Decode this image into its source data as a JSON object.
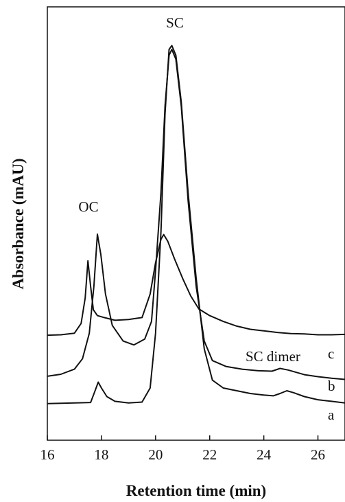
{
  "chart_data": {
    "type": "line",
    "xlabel": "Retention time (min)",
    "ylabel": "Absorbance (mAU)",
    "xlim": [
      16,
      27
    ],
    "ylim": [
      0,
      100
    ],
    "x_ticks": [
      16,
      18,
      20,
      22,
      24,
      26
    ],
    "y_ticks_shown": false,
    "grid": false,
    "legend": "none",
    "annotations": [
      "SC",
      "OC",
      "SC dimer"
    ],
    "series": [
      {
        "name": "a",
        "points": [
          [
            16,
            6
          ],
          [
            17.6,
            6.3
          ],
          [
            17.75,
            9
          ],
          [
            17.88,
            11.5
          ],
          [
            18.0,
            10
          ],
          [
            18.2,
            7.8
          ],
          [
            18.5,
            6.6
          ],
          [
            19,
            6.2
          ],
          [
            19.5,
            6.4
          ],
          [
            19.8,
            10
          ],
          [
            20.0,
            24
          ],
          [
            20.2,
            50
          ],
          [
            20.35,
            80
          ],
          [
            20.5,
            96.5
          ],
          [
            20.6,
            97.5
          ],
          [
            20.75,
            95
          ],
          [
            20.95,
            83
          ],
          [
            21.2,
            60
          ],
          [
            21.5,
            38
          ],
          [
            21.8,
            20
          ],
          [
            22.1,
            12
          ],
          [
            22.5,
            10
          ],
          [
            23.0,
            9.3
          ],
          [
            23.5,
            8.6
          ],
          [
            24.0,
            8.2
          ],
          [
            24.35,
            8.0
          ],
          [
            24.6,
            8.6
          ],
          [
            24.85,
            9.3
          ],
          [
            25.1,
            8.8
          ],
          [
            25.5,
            7.8
          ],
          [
            26.0,
            7.0
          ],
          [
            26.5,
            6.6
          ],
          [
            27,
            6.2
          ]
        ]
      },
      {
        "name": "b",
        "points": [
          [
            16,
            13
          ],
          [
            16.5,
            13.5
          ],
          [
            17.0,
            14.8
          ],
          [
            17.3,
            17.5
          ],
          [
            17.55,
            24
          ],
          [
            17.72,
            36
          ],
          [
            17.85,
            49.3
          ],
          [
            17.98,
            44
          ],
          [
            18.15,
            34
          ],
          [
            18.4,
            26
          ],
          [
            18.8,
            22
          ],
          [
            19.2,
            21
          ],
          [
            19.6,
            22.5
          ],
          [
            19.85,
            27
          ],
          [
            20.0,
            40
          ],
          [
            20.2,
            60
          ],
          [
            20.35,
            82
          ],
          [
            20.5,
            95
          ],
          [
            20.6,
            96.5
          ],
          [
            20.75,
            94
          ],
          [
            20.95,
            82
          ],
          [
            21.2,
            58
          ],
          [
            21.5,
            36
          ],
          [
            21.8,
            22
          ],
          [
            22.1,
            17
          ],
          [
            22.6,
            15.5
          ],
          [
            23.2,
            14.8
          ],
          [
            23.8,
            14.4
          ],
          [
            24.3,
            14.3
          ],
          [
            24.6,
            15
          ],
          [
            24.9,
            14.6
          ],
          [
            25.5,
            13.4
          ],
          [
            26.0,
            12.9
          ],
          [
            26.5,
            12.5
          ],
          [
            27,
            12.2
          ]
        ]
      },
      {
        "name": "c",
        "points": [
          [
            16,
            23.5
          ],
          [
            16.5,
            23.6
          ],
          [
            17.0,
            24
          ],
          [
            17.25,
            26.5
          ],
          [
            17.4,
            33
          ],
          [
            17.5,
            42.5
          ],
          [
            17.6,
            36
          ],
          [
            17.7,
            30
          ],
          [
            17.85,
            28.5
          ],
          [
            18.1,
            28
          ],
          [
            18.5,
            27.3
          ],
          [
            19.0,
            27.5
          ],
          [
            19.5,
            28
          ],
          [
            19.8,
            34
          ],
          [
            20.0,
            42
          ],
          [
            20.2,
            48
          ],
          [
            20.3,
            49.2
          ],
          [
            20.45,
            47.5
          ],
          [
            20.7,
            43
          ],
          [
            21.0,
            38
          ],
          [
            21.3,
            33.5
          ],
          [
            21.6,
            30.2
          ],
          [
            22.0,
            28.5
          ],
          [
            22.5,
            27
          ],
          [
            23.0,
            25.8
          ],
          [
            23.5,
            25
          ],
          [
            24.0,
            24.6
          ],
          [
            24.5,
            24.2
          ],
          [
            25.0,
            23.9
          ],
          [
            25.5,
            23.8
          ],
          [
            26.0,
            23.6
          ],
          [
            26.5,
            23.6
          ],
          [
            27,
            23.7
          ]
        ]
      }
    ]
  },
  "labels": {
    "sc_peak": "SC",
    "oc_peak": "OC",
    "sc_dimer": "SC dimer",
    "curve_a": "a",
    "curve_b": "b",
    "curve_c": "c"
  }
}
